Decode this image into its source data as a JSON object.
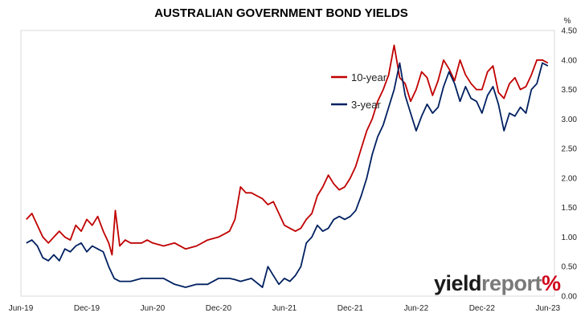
{
  "chart_data": {
    "type": "line",
    "title": "AUSTRALIAN GOVERNMENT BOND YIELDS",
    "ylabel": "%",
    "ylim": [
      0,
      4.5
    ],
    "yticks": [
      "0.00",
      "0.50",
      "1.00",
      "1.50",
      "2.00",
      "2.50",
      "3.00",
      "3.50",
      "4.00",
      "4.50"
    ],
    "xticks": [
      "Jun-19",
      "Dec-19",
      "Jun-20",
      "Dec-20",
      "Jun-21",
      "Dec-21",
      "Jun-22",
      "Dec-22",
      "Jun-23"
    ],
    "xlim": [
      0,
      48.6
    ],
    "legend_position": "upper-center",
    "series": [
      {
        "name": "10-year",
        "color": "#c00000",
        "x": [
          0.5,
          1,
          1.5,
          2,
          2.5,
          3,
          3.5,
          4,
          4.5,
          5,
          5.5,
          6,
          6.5,
          7,
          7.5,
          8,
          8.3,
          8.6,
          9,
          9.5,
          10,
          10.5,
          11,
          11.5,
          12,
          13,
          14,
          15,
          16,
          17,
          18,
          18.5,
          19,
          19.5,
          20,
          20.5,
          21,
          21.5,
          22,
          22.5,
          23,
          23.5,
          24,
          24.5,
          25,
          25.5,
          26,
          26.5,
          27,
          27.5,
          28,
          28.5,
          29,
          29.5,
          30,
          30.5,
          31,
          31.5,
          32,
          32.5,
          33,
          33.5,
          34,
          34.5,
          35,
          35.5,
          36,
          36.5,
          37,
          37.5,
          38,
          38.5,
          39,
          39.5,
          40,
          40.5,
          41,
          41.5,
          42,
          42.5,
          43,
          43.5,
          44,
          44.5,
          45,
          45.5,
          46,
          46.5,
          47,
          47.5,
          48
        ],
        "y": [
          1.3,
          1.4,
          1.2,
          1.0,
          0.9,
          1.0,
          1.1,
          1.0,
          0.95,
          1.2,
          1.1,
          1.3,
          1.2,
          1.35,
          1.1,
          0.9,
          0.7,
          1.45,
          0.85,
          0.95,
          0.9,
          0.9,
          0.9,
          0.95,
          0.9,
          0.85,
          0.9,
          0.8,
          0.85,
          0.95,
          1.0,
          1.05,
          1.1,
          1.3,
          1.85,
          1.75,
          1.75,
          1.7,
          1.65,
          1.55,
          1.6,
          1.4,
          1.2,
          1.15,
          1.1,
          1.15,
          1.3,
          1.4,
          1.7,
          1.85,
          2.05,
          1.9,
          1.8,
          1.85,
          2.0,
          2.2,
          2.5,
          2.8,
          3.0,
          3.3,
          3.5,
          3.75,
          4.25,
          3.7,
          3.6,
          3.3,
          3.5,
          3.8,
          3.7,
          3.4,
          3.65,
          4.0,
          3.85,
          3.65,
          4.0,
          3.75,
          3.6,
          3.5,
          3.5,
          3.8,
          3.9,
          3.45,
          3.35,
          3.6,
          3.7,
          3.5,
          3.55,
          3.75,
          4.0,
          4.0,
          3.95
        ]
      },
      {
        "name": "3-year",
        "color": "#002060",
        "x": [
          0.5,
          1,
          1.5,
          2,
          2.5,
          3,
          3.5,
          4,
          4.5,
          5,
          5.5,
          6,
          6.5,
          7,
          7.5,
          8,
          8.5,
          9,
          10,
          11,
          12,
          13,
          14,
          15,
          16,
          17,
          18,
          19,
          19.5,
          20,
          21,
          22,
          22.5,
          23,
          23.5,
          24,
          24.5,
          25,
          25.5,
          26,
          26.5,
          27,
          27.5,
          28,
          28.5,
          29,
          29.5,
          30,
          30.5,
          31,
          31.5,
          32,
          32.5,
          33,
          33.5,
          34,
          34.5,
          35,
          35.5,
          36,
          36.5,
          37,
          37.5,
          38,
          38.5,
          39,
          39.5,
          40,
          40.5,
          41,
          41.5,
          42,
          42.5,
          43,
          43.5,
          44,
          44.5,
          45,
          45.5,
          46,
          46.5,
          47,
          47.5,
          48
        ],
        "y": [
          0.9,
          0.95,
          0.85,
          0.65,
          0.6,
          0.7,
          0.6,
          0.8,
          0.75,
          0.85,
          0.9,
          0.75,
          0.85,
          0.8,
          0.75,
          0.5,
          0.3,
          0.25,
          0.25,
          0.3,
          0.3,
          0.3,
          0.2,
          0.15,
          0.2,
          0.2,
          0.3,
          0.3,
          0.28,
          0.25,
          0.3,
          0.15,
          0.5,
          0.35,
          0.2,
          0.3,
          0.25,
          0.35,
          0.5,
          0.9,
          1.0,
          1.2,
          1.1,
          1.15,
          1.3,
          1.35,
          1.3,
          1.35,
          1.45,
          1.7,
          2.0,
          2.4,
          2.7,
          2.9,
          3.2,
          3.5,
          3.95,
          3.4,
          3.1,
          2.8,
          3.05,
          3.25,
          3.1,
          3.2,
          3.55,
          3.8,
          3.6,
          3.3,
          3.55,
          3.35,
          3.3,
          3.1,
          3.4,
          3.55,
          3.25,
          2.8,
          3.1,
          3.05,
          3.2,
          3.1,
          3.5,
          3.6,
          3.95,
          3.9
        ]
      }
    ]
  },
  "watermark": {
    "part1": "yield",
    "part2": "report",
    "part3": "%"
  }
}
